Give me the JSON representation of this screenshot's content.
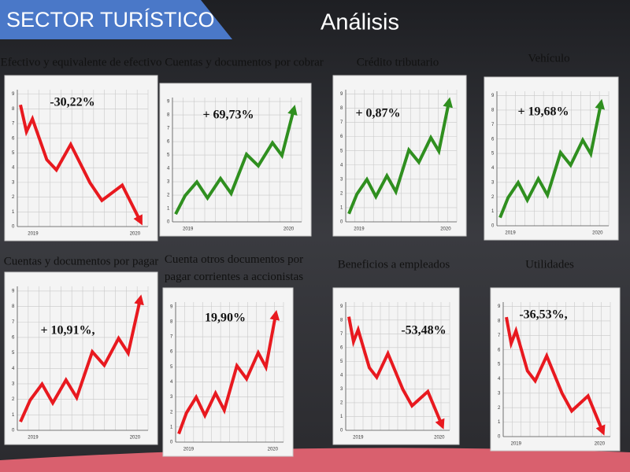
{
  "header": {
    "title": "SECTOR TURÍSTICO",
    "subtitle": "Análisis"
  },
  "axis": {
    "y_labels": [
      "0",
      "1",
      "2",
      "3",
      "4",
      "5",
      "6",
      "7",
      "8",
      "9"
    ],
    "x_labels": [
      "2019",
      "2020"
    ]
  },
  "panels": [
    {
      "title": "Efectivo y equivalente de efectivo",
      "change": "-30,22%"
    },
    {
      "title": "Cuentas y documentos por cobrar",
      "change": "+ 69,73%"
    },
    {
      "title": "Crédito tributario",
      "change": "+ 0,87%"
    },
    {
      "title": "Vehículo",
      "change": "+ 19,68%"
    },
    {
      "title": "Cuentas y documentos por pagar",
      "change": "+ 10,91%,"
    },
    {
      "title": "Cuenta otros documentos por pagar corrientes a accionistas",
      "change": "19,90%"
    },
    {
      "title": "Beneficios a empleados",
      "change": "-53,48%"
    },
    {
      "title": "Utilidades",
      "change": "-36,53%,"
    }
  ]
}
